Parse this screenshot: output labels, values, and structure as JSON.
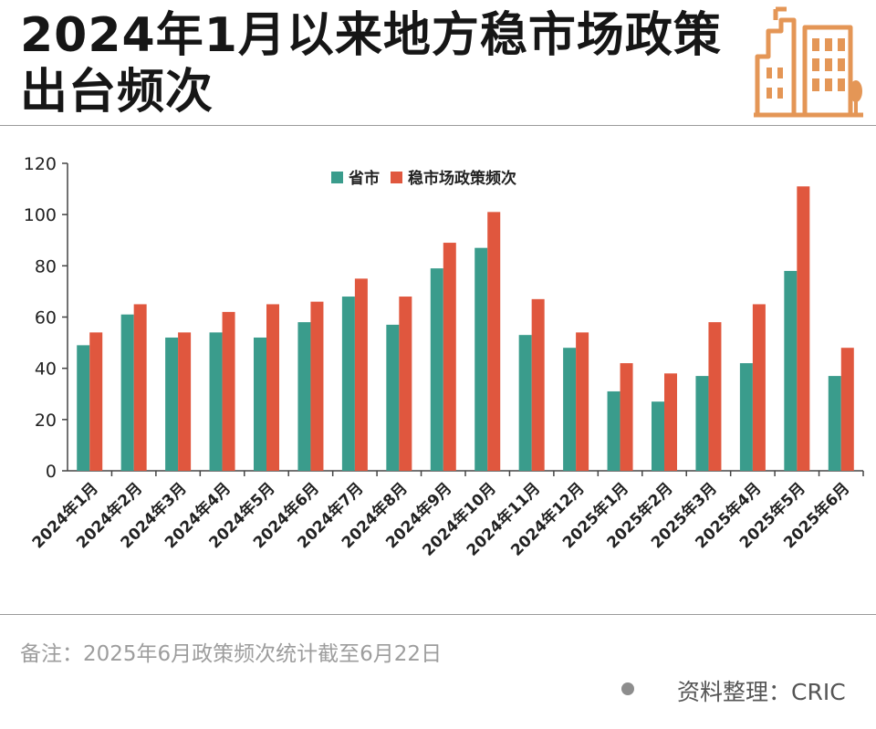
{
  "header": {
    "title": "2024年1月以来地方稳市场政策出台频次"
  },
  "footer": {
    "note": "备注：2025年6月政策频次统计截至6月22日",
    "source": "资料整理：CRIC"
  },
  "colors": {
    "series1": "#3a9c8c",
    "series2": "#e0573e",
    "logo": "#e49656"
  },
  "icons": {
    "logo": "building-icon"
  },
  "chart_data": {
    "type": "bar",
    "categories": [
      "2024年1月",
      "2024年2月",
      "2024年3月",
      "2024年4月",
      "2024年5月",
      "2024年6月",
      "2024年7月",
      "2024年8月",
      "2024年9月",
      "2024年10月",
      "2024年11月",
      "2024年12月",
      "2025年1月",
      "2025年2月",
      "2025年3月",
      "2025年4月",
      "2025年5月",
      "2025年6月"
    ],
    "series": [
      {
        "name": "省市",
        "values": [
          49,
          61,
          52,
          54,
          52,
          58,
          68,
          57,
          79,
          87,
          53,
          48,
          31,
          27,
          37,
          42,
          78,
          37
        ]
      },
      {
        "name": "稳市场政策频次",
        "values": [
          54,
          65,
          54,
          62,
          65,
          66,
          75,
          68,
          89,
          101,
          67,
          54,
          42,
          38,
          58,
          65,
          111,
          48
        ]
      }
    ],
    "title": "",
    "xlabel": "",
    "ylabel": "",
    "ylim": [
      0,
      120
    ],
    "yticks": [
      0,
      20,
      40,
      60,
      80,
      100,
      120
    ],
    "grid": false,
    "legend": "top-center"
  }
}
